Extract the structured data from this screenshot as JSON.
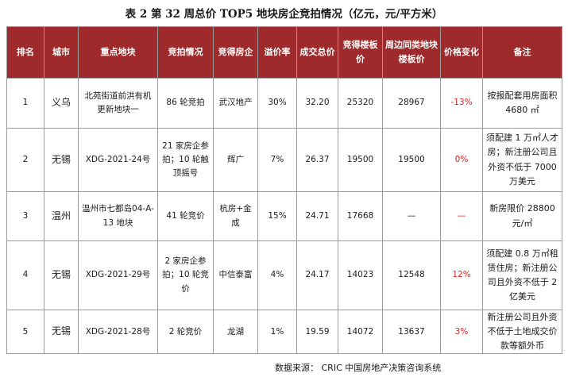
{
  "title": "表 2   第 32 周总价 TOP5 地块房企竞拍情况（亿元，元/平方米）",
  "columns": [
    "排名",
    "城市",
    "重点地块",
    "竞拍情况",
    "竞得房企",
    "溢价率",
    "成交总价",
    "竞得楼板价",
    "周边同类地块楼板价",
    "价格变化",
    "备注"
  ],
  "rows": [
    {
      "rank": "1",
      "city": "义乌",
      "plot": "北苑街道前洪有机更新地块一",
      "auction": "86 轮竞拍",
      "winner": "武汉地产",
      "premium": "30%",
      "total": "32.20",
      "floor_price": "25320",
      "nearby_price": "28967",
      "change": "-13%",
      "remark": "按报配套用房面积 4680 ㎡"
    },
    {
      "rank": "2",
      "city": "无锡",
      "plot": "XDG-2021-24号",
      "auction": "21 家房企参拍；10 轮触顶摇号",
      "winner": "辉广",
      "premium": "7%",
      "total": "26.37",
      "floor_price": "19500",
      "nearby_price": "19500",
      "change": "0%",
      "remark": "须配建 1 万㎡人才房；新注册公司且外资不低于 7000 万美元"
    },
    {
      "rank": "3",
      "city": "温州",
      "plot": "温州市七都岛04-A-13 地块",
      "auction": "41 轮竞价",
      "winner": "杭房+金成",
      "premium": "15%",
      "total": "24.71",
      "floor_price": "17668",
      "nearby_price": "—",
      "change": "—",
      "remark": "新房限价 28800 元/㎡"
    },
    {
      "rank": "4",
      "city": "无锡",
      "plot": "XDG-2021-29号",
      "auction": "2 家房企参拍；10 轮竞价",
      "winner": "中信泰富",
      "premium": "4%",
      "total": "24.17",
      "floor_price": "14023",
      "nearby_price": "12548",
      "change": "12%",
      "remark": "须配建 0.8 万㎡租赁住房；新注册公司且外资不低于 2 亿美元"
    },
    {
      "rank": "5",
      "city": "无锡",
      "plot": "XDG-2021-28号",
      "auction": "2 轮竞价",
      "winner": "龙湖",
      "premium": "1%",
      "total": "19.59",
      "floor_price": "14072",
      "nearby_price": "13637",
      "change": "3%",
      "remark": "新注册公司且外资不低于土地成交价款等额外币"
    }
  ],
  "source": "数据来源：  CRIC 中国房地产决策咨询系统",
  "colors": {
    "header_bg": "#9e2a2b",
    "header_text": "#ffffff",
    "change_text": "#d9241c"
  }
}
